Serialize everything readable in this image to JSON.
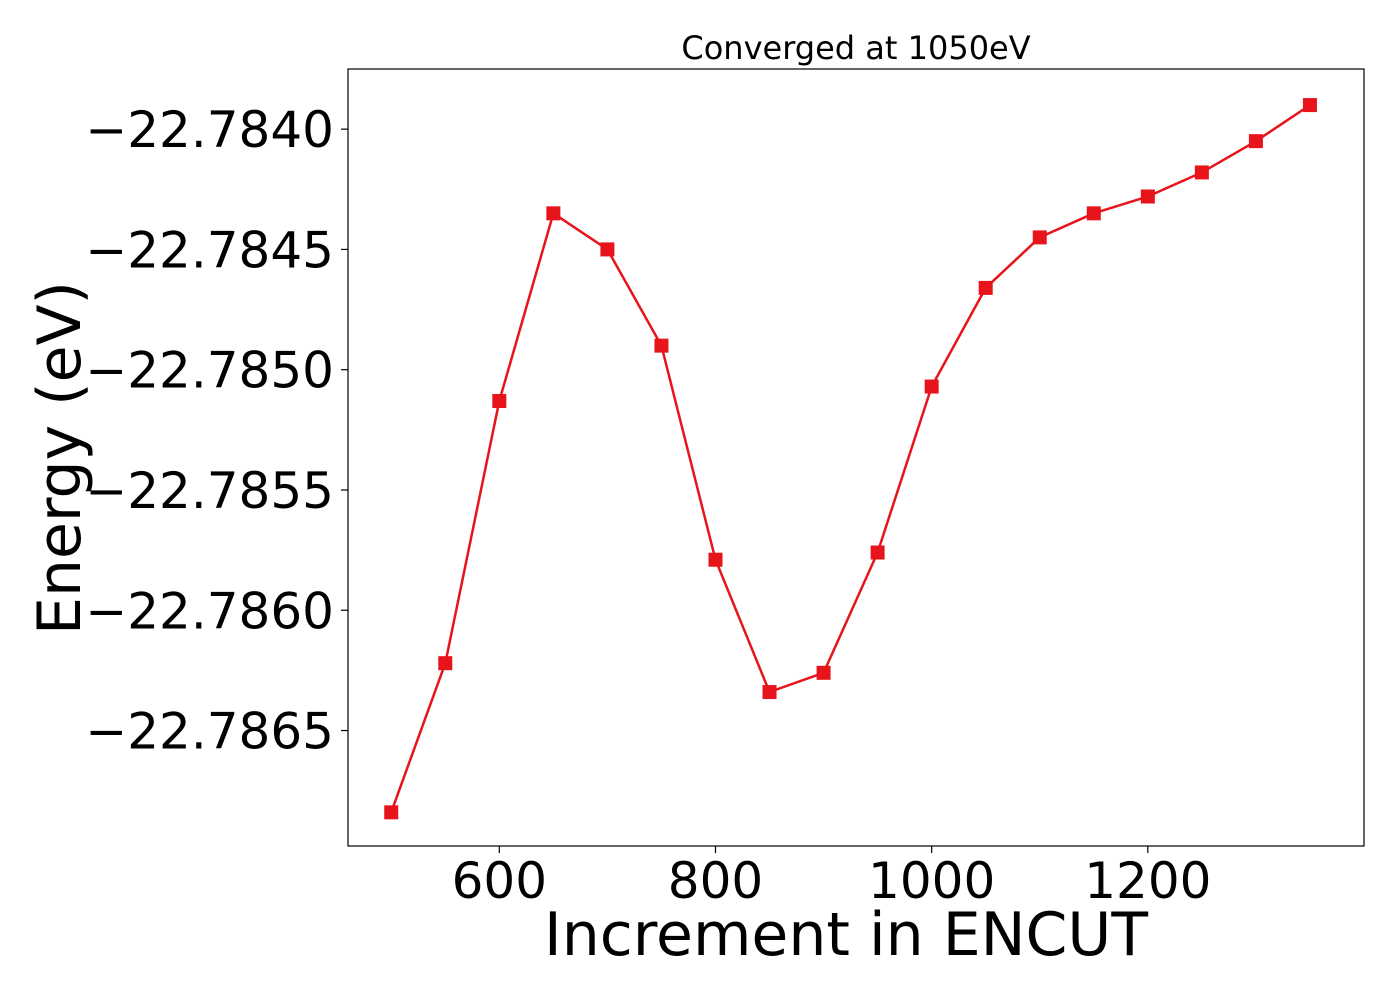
{
  "chart_data": {
    "type": "line",
    "title": "Converged at 1050eV",
    "xlabel": "Increment in ENCUT",
    "ylabel": "Energy (eV)",
    "xlim": [
      460,
      1400
    ],
    "ylim": [
      -22.78698,
      -22.78375
    ],
    "xticks": [
      600,
      800,
      1000,
      1200
    ],
    "xtick_labels": [
      "600",
      "800",
      "1000",
      "1200"
    ],
    "yticks": [
      -22.784,
      -22.7845,
      -22.785,
      -22.7855,
      -22.786,
      -22.7865
    ],
    "ytick_labels": [
      "−22.7840",
      "−22.7845",
      "−22.7850",
      "−22.7855",
      "−22.7860",
      "−22.7865"
    ],
    "grid": false,
    "series": [
      {
        "color": "#e8141b",
        "marker": "square",
        "x": [
          500,
          550,
          600,
          650,
          700,
          750,
          800,
          850,
          900,
          950,
          1000,
          1050,
          1100,
          1150,
          1200,
          1250,
          1300,
          1350
        ],
        "y": [
          -22.78684,
          -22.78622,
          -22.78513,
          -22.78435,
          -22.7845,
          -22.7849,
          -22.78579,
          -22.78634,
          -22.78626,
          -22.78576,
          -22.78507,
          -22.78466,
          -22.78445,
          -22.78435,
          -22.78428,
          -22.78418,
          -22.78405,
          -22.7839
        ]
      }
    ]
  }
}
